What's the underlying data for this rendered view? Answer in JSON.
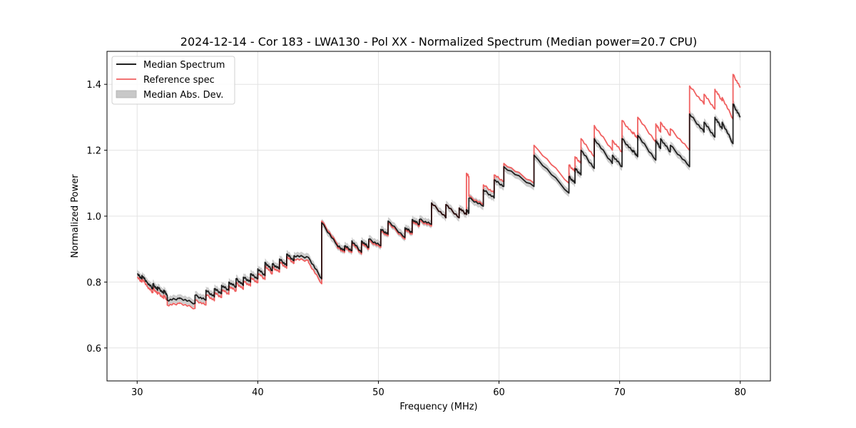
{
  "chart_data": {
    "type": "line",
    "title": "2024-12-14 - Cor 183 - LWA130 - Pol XX - Normalized Spectrum (Median power=20.7 CPU)",
    "xlabel": "Frequency (MHz)",
    "ylabel": "Normalized Power",
    "xlim": [
      27.5,
      82.5
    ],
    "ylim": [
      0.5,
      1.5
    ],
    "xticks": [
      30,
      40,
      50,
      60,
      70,
      80
    ],
    "xtick_labels": [
      "30",
      "40",
      "50",
      "60",
      "70",
      "80"
    ],
    "yticks": [
      0.6,
      0.8,
      1.0,
      1.2,
      1.4
    ],
    "ytick_labels": [
      "0.6",
      "0.8",
      "1.0",
      "1.2",
      "1.4"
    ],
    "grid": true,
    "legend": {
      "placement": "top-left",
      "entries": [
        {
          "label": "Median Spectrum",
          "kind": "line",
          "color": "#000000"
        },
        {
          "label": "Reference spec",
          "kind": "line",
          "color": "#f06060"
        },
        {
          "label": "Median Abs. Dev.",
          "kind": "band",
          "color": "#c8c8c8"
        }
      ]
    },
    "colors": {
      "median": "#000000",
      "reference": "#f06060",
      "mad_band": "#c8c8c8"
    },
    "mad_width": 0.012,
    "segments": [
      {
        "f0": 30.0,
        "f1": 30.4,
        "median": [
          0.825,
          0.81
        ],
        "ref_offset": -0.01
      },
      {
        "f0": 30.4,
        "f1": 30.8,
        "median": [
          0.82,
          0.8
        ],
        "ref_offset": -0.01
      },
      {
        "f0": 30.8,
        "f1": 31.3,
        "median": [
          0.8,
          0.78
        ],
        "ref_offset": -0.012
      },
      {
        "f0": 31.3,
        "f1": 31.7,
        "median": [
          0.795,
          0.775
        ],
        "ref_offset": -0.012
      },
      {
        "f0": 31.7,
        "f1": 32.2,
        "median": [
          0.785,
          0.765
        ],
        "ref_offset": -0.015
      },
      {
        "f0": 32.2,
        "f1": 32.5,
        "median": [
          0.775,
          0.76
        ],
        "ref_offset": -0.015
      },
      {
        "f0": 32.5,
        "f1": 33.5,
        "median": [
          0.745,
          0.75
        ],
        "ref_offset": -0.015
      },
      {
        "f0": 33.5,
        "f1": 34.8,
        "median": [
          0.752,
          0.735
        ],
        "ref_offset": -0.015
      },
      {
        "f0": 34.8,
        "f1": 35.7,
        "median": [
          0.76,
          0.745
        ],
        "ref_offset": -0.015
      },
      {
        "f0": 35.7,
        "f1": 36.4,
        "median": [
          0.775,
          0.755
        ],
        "ref_offset": -0.012
      },
      {
        "f0": 36.4,
        "f1": 37.0,
        "median": [
          0.78,
          0.765
        ],
        "ref_offset": -0.012
      },
      {
        "f0": 37.0,
        "f1": 37.6,
        "median": [
          0.79,
          0.775
        ],
        "ref_offset": -0.012
      },
      {
        "f0": 37.6,
        "f1": 38.2,
        "median": [
          0.8,
          0.785
        ],
        "ref_offset": -0.012
      },
      {
        "f0": 38.2,
        "f1": 38.8,
        "median": [
          0.81,
          0.79
        ],
        "ref_offset": -0.012
      },
      {
        "f0": 38.8,
        "f1": 39.4,
        "median": [
          0.815,
          0.8
        ],
        "ref_offset": -0.012
      },
      {
        "f0": 39.4,
        "f1": 40.0,
        "median": [
          0.825,
          0.81
        ],
        "ref_offset": -0.012
      },
      {
        "f0": 40.0,
        "f1": 40.6,
        "median": [
          0.84,
          0.82
        ],
        "ref_offset": -0.012
      },
      {
        "f0": 40.6,
        "f1": 41.2,
        "median": [
          0.86,
          0.835
        ],
        "ref_offset": -0.01
      },
      {
        "f0": 41.2,
        "f1": 41.8,
        "median": [
          0.855,
          0.84
        ],
        "ref_offset": -0.01
      },
      {
        "f0": 41.8,
        "f1": 42.4,
        "median": [
          0.87,
          0.85
        ],
        "ref_offset": -0.008
      },
      {
        "f0": 42.4,
        "f1": 43.0,
        "median": [
          0.885,
          0.865
        ],
        "ref_offset": -0.008
      },
      {
        "f0": 43.0,
        "f1": 44.2,
        "median": [
          0.88,
          0.875
        ],
        "ref_offset": -0.01
      },
      {
        "f0": 44.2,
        "f1": 45.3,
        "median": [
          0.875,
          0.81
        ],
        "ref_offset": -0.015
      },
      {
        "f0": 45.3,
        "f1": 46.6,
        "median": [
          0.98,
          0.91
        ],
        "ref_offset": 0.005
      },
      {
        "f0": 46.6,
        "f1": 47.2,
        "median": [
          0.91,
          0.895
        ],
        "ref_offset": -0.005
      },
      {
        "f0": 47.2,
        "f1": 47.8,
        "median": [
          0.91,
          0.895
        ],
        "ref_offset": -0.005
      },
      {
        "f0": 47.8,
        "f1": 48.6,
        "median": [
          0.925,
          0.89
        ],
        "ref_offset": -0.005
      },
      {
        "f0": 48.6,
        "f1": 49.2,
        "median": [
          0.925,
          0.905
        ],
        "ref_offset": -0.005
      },
      {
        "f0": 49.2,
        "f1": 50.2,
        "median": [
          0.93,
          0.91
        ],
        "ref_offset": -0.005
      },
      {
        "f0": 50.2,
        "f1": 50.8,
        "median": [
          0.96,
          0.945
        ],
        "ref_offset": -0.005
      },
      {
        "f0": 50.8,
        "f1": 52.2,
        "median": [
          0.985,
          0.935
        ],
        "ref_offset": -0.005
      },
      {
        "f0": 52.2,
        "f1": 52.8,
        "median": [
          0.965,
          0.95
        ],
        "ref_offset": -0.005
      },
      {
        "f0": 52.8,
        "f1": 53.4,
        "median": [
          0.99,
          0.975
        ],
        "ref_offset": -0.005
      },
      {
        "f0": 53.4,
        "f1": 54.4,
        "median": [
          0.99,
          0.975
        ],
        "ref_offset": -0.005
      },
      {
        "f0": 54.4,
        "f1": 55.6,
        "median": [
          1.04,
          0.995
        ],
        "ref_offset": 0.0
      },
      {
        "f0": 55.6,
        "f1": 56.7,
        "median": [
          1.035,
          0.995
        ],
        "ref_offset": 0.0
      },
      {
        "f0": 56.7,
        "f1": 57.3,
        "median": [
          1.025,
          1.005
        ],
        "ref_offset": 0.0
      },
      {
        "f0": 57.3,
        "f1": 57.5,
        "median": [
          1.02,
          1.01
        ],
        "ref_offset": 0.11
      },
      {
        "f0": 57.5,
        "f1": 58.7,
        "median": [
          1.055,
          1.03
        ],
        "ref_offset": 0.005
      },
      {
        "f0": 58.7,
        "f1": 59.6,
        "median": [
          1.08,
          1.055
        ],
        "ref_offset": 0.015
      },
      {
        "f0": 59.6,
        "f1": 60.4,
        "median": [
          1.11,
          1.09
        ],
        "ref_offset": 0.015
      },
      {
        "f0": 60.4,
        "f1": 62.9,
        "median": [
          1.15,
          1.09
        ],
        "ref_offset": 0.01
      },
      {
        "f0": 62.9,
        "f1": 65.8,
        "median": [
          1.185,
          1.07
        ],
        "ref_offset": 0.03
      },
      {
        "f0": 65.8,
        "f1": 66.3,
        "median": [
          1.12,
          1.1
        ],
        "ref_offset": 0.035
      },
      {
        "f0": 66.3,
        "f1": 66.8,
        "median": [
          1.145,
          1.125
        ],
        "ref_offset": 0.035
      },
      {
        "f0": 66.8,
        "f1": 67.9,
        "median": [
          1.2,
          1.145
        ],
        "ref_offset": 0.035
      },
      {
        "f0": 67.9,
        "f1": 69.4,
        "median": [
          1.235,
          1.16
        ],
        "ref_offset": 0.04
      },
      {
        "f0": 69.4,
        "f1": 70.2,
        "median": [
          1.185,
          1.15
        ],
        "ref_offset": 0.045
      },
      {
        "f0": 70.2,
        "f1": 71.1,
        "median": [
          1.235,
          1.195
        ],
        "ref_offset": 0.055
      },
      {
        "f0": 71.1,
        "f1": 71.5,
        "median": [
          1.2,
          1.18
        ],
        "ref_offset": 0.055
      },
      {
        "f0": 71.5,
        "f1": 73.0,
        "median": [
          1.245,
          1.17
        ],
        "ref_offset": 0.055
      },
      {
        "f0": 73.0,
        "f1": 73.4,
        "median": [
          1.23,
          1.205
        ],
        "ref_offset": 0.05
      },
      {
        "f0": 73.4,
        "f1": 74.2,
        "median": [
          1.235,
          1.195
        ],
        "ref_offset": 0.05
      },
      {
        "f0": 74.2,
        "f1": 75.8,
        "median": [
          1.215,
          1.15
        ],
        "ref_offset": 0.05
      },
      {
        "f0": 75.8,
        "f1": 77.0,
        "median": [
          1.31,
          1.255
        ],
        "ref_offset": 0.085
      },
      {
        "f0": 77.0,
        "f1": 77.9,
        "median": [
          1.285,
          1.24
        ],
        "ref_offset": 0.085
      },
      {
        "f0": 77.9,
        "f1": 78.5,
        "median": [
          1.3,
          1.265
        ],
        "ref_offset": 0.085
      },
      {
        "f0": 78.5,
        "f1": 79.4,
        "median": [
          1.285,
          1.22
        ],
        "ref_offset": 0.075
      },
      {
        "f0": 79.4,
        "f1": 80.0,
        "median": [
          1.34,
          1.3
        ],
        "ref_offset": 0.09
      }
    ]
  }
}
